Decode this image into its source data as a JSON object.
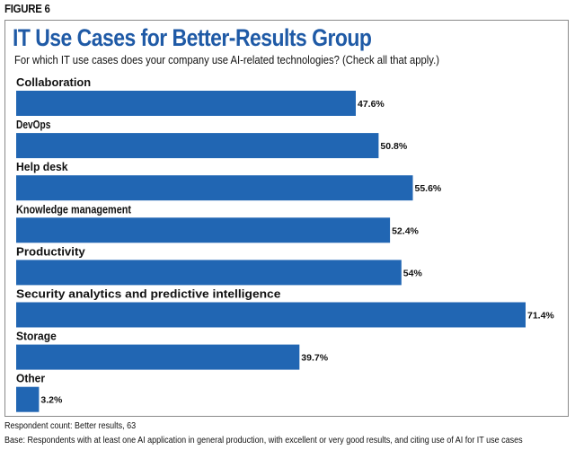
{
  "figure_label": "FIGURE 6",
  "chart_data": {
    "type": "bar",
    "orientation": "horizontal",
    "title": "IT Use Cases for Better-Results Group",
    "subtitle": "For which IT use cases does your company use AI-related technologies? (Check all that apply.)",
    "categories": [
      "Collaboration",
      "DevOps",
      "Help desk",
      "Knowledge management",
      "Productivity",
      "Security analytics and predictive intelligence",
      "Storage",
      "Other"
    ],
    "values": [
      47.6,
      50.8,
      55.6,
      52.4,
      54,
      71.4,
      39.7,
      3.2
    ],
    "value_labels": [
      "47.6%",
      "50.8%",
      "55.6%",
      "52.4%",
      "54%",
      "71.4%",
      "39.7%",
      "3.2%"
    ],
    "xlim": [
      0,
      71.4
    ],
    "bar_color": "#2166b3",
    "title_color": "#1f5aa6",
    "grid": false,
    "legend": "none"
  },
  "footnotes": {
    "respondent_count": "Respondent count: Better results, 63",
    "base": "Base: Respondents with at least one AI application in general production, with excellent or very good results, and citing use of AI for IT use cases"
  }
}
